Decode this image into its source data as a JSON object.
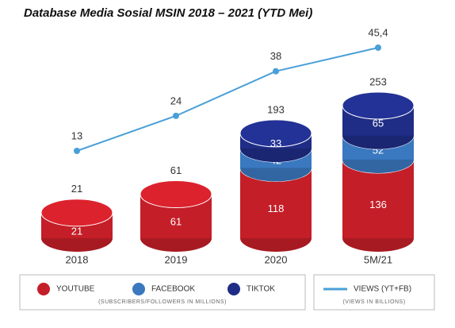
{
  "chart_data": {
    "type": "bar",
    "stacked": true,
    "title": "Database Media Sosial MSIN 2018 – 2021 (YTD Mei)",
    "categories": [
      "2018",
      "2019",
      "2020",
      "5M/21"
    ],
    "series": [
      {
        "name": "YOUTUBE",
        "color": "#c41e28",
        "values": [
          21,
          61,
          118,
          136
        ]
      },
      {
        "name": "FACEBOOK",
        "color": "#3a78c0",
        "values": [
          null,
          null,
          42,
          52
        ]
      },
      {
        "name": "TIKTOK",
        "color": "#1f2d86",
        "values": [
          null,
          null,
          33,
          65
        ]
      },
      {
        "name": "VIEWS (YT+FB)",
        "type": "line",
        "axis": "y2",
        "color": "#4a9fd8",
        "values": [
          13,
          24,
          38,
          45.4
        ],
        "value_labels": [
          "13",
          "24",
          "38",
          "45,4"
        ]
      }
    ],
    "totals": [
      21,
      61,
      193,
      253
    ],
    "bar_note": "(SUBSCRIBERS/FOLLOWERS IN MILLIONS)",
    "line_note": "(VIEWS IN BILLIONS)"
  }
}
